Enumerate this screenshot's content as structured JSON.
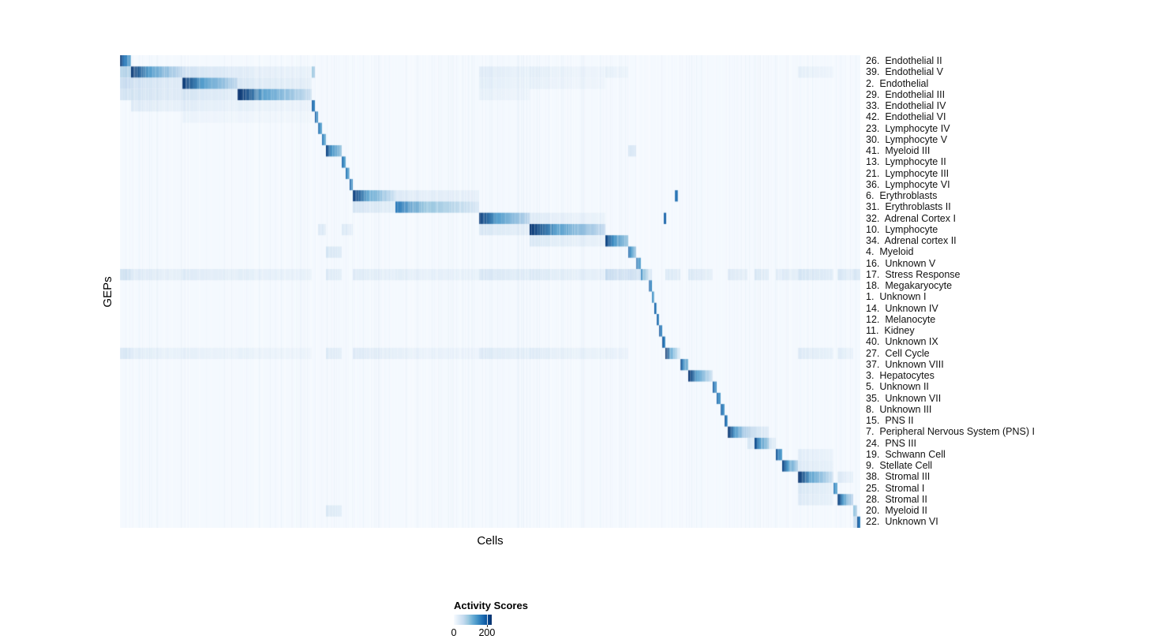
{
  "chart_data": {
    "type": "heatmap",
    "xlabel": "Cells",
    "ylabel": "GEPs",
    "rows": [
      "26.  Endothelial II",
      "39.  Endothelial V",
      "2.  Endothelial",
      "29.  Endothelial III",
      "33.  Endothelial IV",
      "42.  Endothelial VI",
      "23.  Lymphocyte IV",
      "30.  Lymphocyte V",
      "41.  Myeloid III",
      "13.  Lymphocyte II",
      "21.  Lymphocyte III",
      "36.  Lymphocyte VI",
      "6.  Erythroblasts",
      "31.  Erythroblasts II",
      "32.  Adrenal Cortex I",
      "10.  Lymphocyte",
      "34.  Adrenal cortex II",
      "4.  Myeloid",
      "16.  Unknown V",
      "17.  Stress Response",
      "18.  Megakaryocyte",
      "1.  Unknown I",
      "14.  Unknown IV",
      "12.  Melanocyte",
      "11.  Kidney",
      "40.  Unknown IX",
      "27.  Cell Cycle",
      "37.  Unknown VIII",
      "3.  Hepatocytes",
      "5.  Unknown II",
      "35.  Unknown VII",
      "8.  Unknown III",
      "15.  PNS II",
      "7.  Peripheral Nervous System (PNS) I",
      "24.  PNS III",
      "19.  Schwann Cell",
      "9.  Stellate Cell",
      "38.  Stromal III",
      "25.  Stromal I",
      "28.  Stromal II",
      "20.  Myeloid II",
      "22.  Unknown VI"
    ],
    "col_cluster_widths": [
      14,
      65,
      70,
      94,
      4,
      4,
      5,
      5,
      20,
      5,
      5,
      4,
      54,
      106,
      64,
      96,
      29,
      10,
      6,
      10,
      4,
      3,
      3,
      3,
      4,
      4,
      19,
      10,
      31,
      5,
      5,
      5,
      4,
      25,
      9,
      18,
      9,
      8,
      20,
      45,
      5,
      20,
      5,
      4
    ],
    "background_value": 4,
    "vmin": 0,
    "vmax": 229,
    "colormap": [
      "#f7fbff",
      "#deebf7",
      "#c6dbef",
      "#9ecae1",
      "#6baed6",
      "#4292c6",
      "#2171b5",
      "#08519c",
      "#08306b"
    ],
    "cells": [
      [
        0,
        0,
        230,
        120
      ],
      [
        1,
        1,
        225,
        55
      ],
      [
        1,
        0,
        70,
        70
      ],
      [
        1,
        2,
        48,
        26
      ],
      [
        1,
        3,
        28,
        15
      ],
      [
        1,
        4,
        95,
        70
      ],
      [
        1,
        14,
        28,
        15
      ],
      [
        1,
        15,
        22,
        12
      ],
      [
        1,
        16,
        20,
        10
      ],
      [
        1,
        39,
        22,
        12
      ],
      [
        2,
        2,
        225,
        60
      ],
      [
        2,
        1,
        48,
        28
      ],
      [
        2,
        0,
        55,
        55
      ],
      [
        2,
        3,
        36,
        20
      ],
      [
        2,
        14,
        24,
        13
      ],
      [
        2,
        15,
        18,
        10
      ],
      [
        3,
        3,
        228,
        45
      ],
      [
        3,
        1,
        45,
        28
      ],
      [
        3,
        2,
        42,
        24
      ],
      [
        3,
        0,
        42,
        42
      ],
      [
        3,
        14,
        18,
        10
      ],
      [
        4,
        4,
        205,
        150
      ],
      [
        4,
        1,
        30,
        18
      ],
      [
        4,
        2,
        28,
        16
      ],
      [
        4,
        3,
        22,
        12
      ],
      [
        5,
        5,
        205,
        130
      ],
      [
        5,
        2,
        15,
        9
      ],
      [
        5,
        3,
        12,
        7
      ],
      [
        6,
        6,
        195,
        110
      ],
      [
        7,
        7,
        185,
        105
      ],
      [
        8,
        8,
        220,
        80
      ],
      [
        8,
        17,
        42,
        26
      ],
      [
        9,
        9,
        195,
        115
      ],
      [
        10,
        10,
        185,
        105
      ],
      [
        11,
        11,
        205,
        125
      ],
      [
        12,
        12,
        220,
        40
      ],
      [
        12,
        13,
        30,
        17
      ],
      [
        13,
        13,
        165,
        30
      ],
      [
        13,
        12,
        42,
        24
      ],
      [
        14,
        14,
        220,
        60
      ],
      [
        14,
        15,
        28,
        15
      ],
      [
        15,
        15,
        225,
        55
      ],
      [
        15,
        14,
        36,
        20
      ],
      [
        15,
        6,
        38,
        22
      ],
      [
        15,
        7,
        36,
        20
      ],
      [
        15,
        9,
        34,
        20
      ],
      [
        15,
        10,
        32,
        18
      ],
      [
        15,
        11,
        30,
        17
      ],
      [
        16,
        16,
        220,
        80
      ],
      [
        16,
        15,
        32,
        17
      ],
      [
        17,
        17,
        195,
        70
      ],
      [
        17,
        8,
        40,
        25
      ],
      [
        18,
        18,
        195,
        115
      ],
      [
        19,
        19,
        150,
        45
      ],
      [
        19,
        0,
        45,
        45
      ],
      [
        19,
        1,
        30,
        20
      ],
      [
        19,
        2,
        30,
        20
      ],
      [
        19,
        3,
        24,
        15
      ],
      [
        19,
        8,
        32,
        20
      ],
      [
        19,
        12,
        30,
        19
      ],
      [
        19,
        13,
        24,
        15
      ],
      [
        19,
        14,
        36,
        22
      ],
      [
        19,
        15,
        30,
        19
      ],
      [
        19,
        16,
        60,
        35
      ],
      [
        19,
        17,
        55,
        38
      ],
      [
        19,
        18,
        50,
        40
      ],
      [
        19,
        20,
        42,
        32
      ],
      [
        19,
        26,
        36,
        24
      ],
      [
        19,
        28,
        30,
        20
      ],
      [
        19,
        33,
        30,
        20
      ],
      [
        19,
        35,
        34,
        22
      ],
      [
        19,
        37,
        28,
        18
      ],
      [
        19,
        38,
        30,
        20
      ],
      [
        19,
        39,
        40,
        25
      ],
      [
        19,
        41,
        38,
        24
      ],
      [
        19,
        42,
        42,
        30
      ],
      [
        19,
        43,
        36,
        26
      ],
      [
        20,
        20,
        205,
        140
      ],
      [
        21,
        21,
        160,
        100
      ],
      [
        22,
        22,
        205,
        145
      ],
      [
        23,
        23,
        205,
        145
      ],
      [
        24,
        24,
        210,
        145
      ],
      [
        25,
        25,
        215,
        145
      ],
      [
        26,
        26,
        232,
        15
      ],
      [
        26,
        0,
        36,
        36
      ],
      [
        26,
        1,
        26,
        16
      ],
      [
        26,
        2,
        22,
        14
      ],
      [
        26,
        3,
        18,
        10
      ],
      [
        26,
        8,
        30,
        20
      ],
      [
        26,
        12,
        30,
        20
      ],
      [
        26,
        13,
        20,
        12
      ],
      [
        26,
        14,
        30,
        18
      ],
      [
        26,
        15,
        26,
        15
      ],
      [
        26,
        16,
        20,
        12
      ],
      [
        26,
        39,
        30,
        18
      ],
      [
        26,
        41,
        26,
        16
      ],
      [
        27,
        27,
        215,
        95
      ],
      [
        28,
        28,
        228,
        38
      ],
      [
        29,
        29,
        205,
        135
      ],
      [
        30,
        30,
        195,
        125
      ],
      [
        31,
        31,
        205,
        135
      ],
      [
        32,
        32,
        215,
        140
      ],
      [
        33,
        33,
        228,
        55
      ],
      [
        33,
        34,
        75,
        45
      ],
      [
        33,
        35,
        45,
        25
      ],
      [
        34,
        35,
        215,
        75
      ],
      [
        34,
        34,
        40,
        25
      ],
      [
        34,
        36,
        42,
        22
      ],
      [
        35,
        37,
        215,
        120
      ],
      [
        35,
        39,
        25,
        15
      ],
      [
        36,
        38,
        218,
        65
      ],
      [
        36,
        39,
        30,
        18
      ],
      [
        37,
        39,
        228,
        40
      ],
      [
        37,
        41,
        32,
        18
      ],
      [
        38,
        40,
        175,
        110
      ],
      [
        38,
        39,
        36,
        20
      ],
      [
        39,
        41,
        222,
        55
      ],
      [
        39,
        39,
        30,
        18
      ],
      [
        40,
        42,
        115,
        60
      ],
      [
        40,
        8,
        34,
        22
      ],
      [
        41,
        43,
        225,
        150
      ],
      [
        41,
        42,
        60,
        40
      ]
    ],
    "strays": [
      [
        12,
        703,
        4,
        175
      ],
      [
        14,
        689,
        3,
        185
      ]
    ],
    "legend": {
      "title": "Activity Scores",
      "tick0": "0",
      "tick200": "200",
      "tick_values": [
        0,
        200
      ]
    }
  }
}
